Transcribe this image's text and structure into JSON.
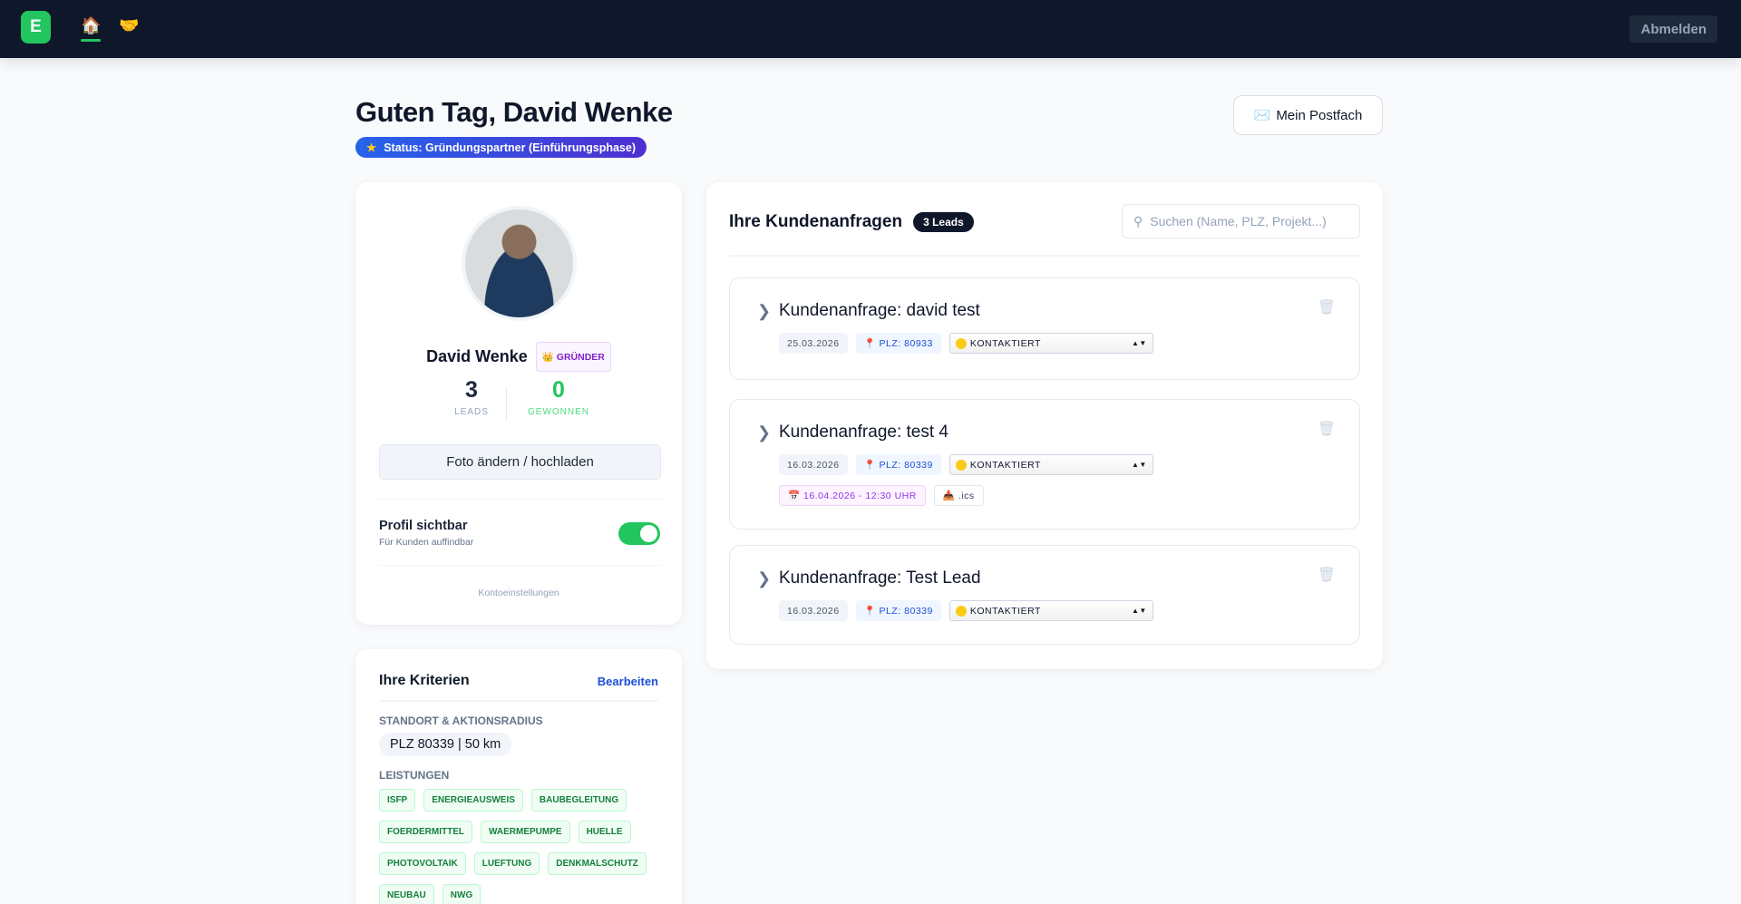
{
  "topbar": {
    "logo": "E",
    "nav": [
      {
        "icon": "house-icon",
        "glyph": "🏠",
        "active": true
      },
      {
        "icon": "handshake-icon",
        "glyph": "🤝",
        "active": false
      }
    ],
    "logout": "Abmelden"
  },
  "page": {
    "title": "Guten Tag, David Wenke",
    "status": "Status: Gründungspartner (Einführungsphase)",
    "status_icon": "★",
    "postfach_icon": "✉️",
    "postfach": "Mein Postfach"
  },
  "profile": {
    "name": "David Wenke",
    "badge": "👑 GRÜNDER",
    "leads_value": "3",
    "leads_label": "LEADS",
    "won_value": "0",
    "won_label": "GEWONNEN",
    "photo_button": "Foto ändern / hochladen",
    "visible_title": "Profil sichtbar",
    "visible_sub": "Für Kunden auffindbar",
    "visible_on": true,
    "settings": "Kontoeinstellungen"
  },
  "criteria": {
    "title": "Ihre Kriterien",
    "edit": "Bearbeiten",
    "location_label": "STANDORT & AKTIONSRADIUS",
    "location": "PLZ 80339 | 50 km",
    "services_label": "LEISTUNGEN",
    "services": [
      "ISFP",
      "ENERGIEAUSWEIS",
      "BAUBEGLEITUNG",
      "FOERDERMITTEL",
      "WAERMEPUMPE",
      "HUELLE",
      "PHOTOVOLTAIK",
      "LUEFTUNG",
      "DENKMALSCHUTZ",
      "NEUBAU",
      "NWG"
    ]
  },
  "leads": {
    "title": "Ihre Kundenanfragen",
    "count": "3 Leads",
    "search_placeholder": "Suchen (Name, PLZ, Projekt...)",
    "items": [
      {
        "title": "Kundenanfrage:  david test",
        "date": "25.03.2026",
        "plz": "📍 PLZ: 80933",
        "status": "KONTAKTIERT"
      },
      {
        "title": "Kundenanfrage:  test 4",
        "date": "16.03.2026",
        "plz": "📍 PLZ: 80339",
        "status": "KONTAKTIERT",
        "appointment": "📅 16.04.2026 - 12:30 UHR",
        "ics": "📥 .ics"
      },
      {
        "title": "Kundenanfrage:  Test Lead",
        "date": "16.03.2026",
        "plz": "📍 PLZ: 80339",
        "status": "KONTAKTIERT"
      }
    ]
  },
  "colors": {
    "accent": "#22c55e",
    "nav_bg": "#0f172a",
    "link": "#1d4ed8",
    "status_yellow": "#facc15"
  }
}
